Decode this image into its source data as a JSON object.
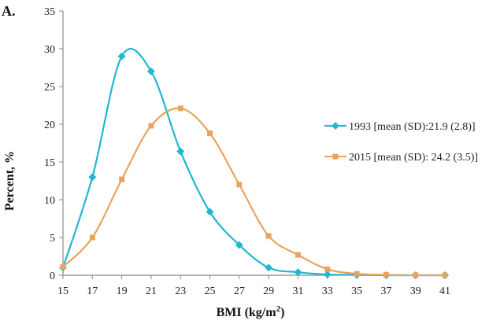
{
  "panel_label": "A.",
  "colors": {
    "series_1993": "#20B7D0",
    "series_2015": "#E9A35E",
    "axis": "#8a8a8a"
  },
  "chart_data": {
    "type": "line",
    "xlabel_main": "BMI (kg/m",
    "xlabel_sup": "2",
    "xlabel_tail": ")",
    "ylabel": "Percent, %",
    "xlim": [
      15,
      41
    ],
    "ylim": [
      0,
      35
    ],
    "x_ticks": [
      15,
      17,
      19,
      21,
      23,
      25,
      27,
      29,
      31,
      33,
      35,
      37,
      39,
      41
    ],
    "y_ticks": [
      0,
      5,
      10,
      15,
      20,
      25,
      30,
      35
    ],
    "grid": false,
    "legend_position": "right",
    "series": [
      {
        "name": "1993 [mean (SD):21.9 (2.8)]",
        "marker": "diamond",
        "x": [
          15,
          17,
          19,
          21,
          23,
          25,
          27,
          29,
          31,
          33,
          35,
          37,
          39,
          41
        ],
        "y": [
          1.0,
          13.0,
          29.0,
          27.0,
          16.4,
          8.4,
          4.0,
          1.0,
          0.4,
          0.1,
          0.05,
          0.0,
          0.0,
          0.0
        ]
      },
      {
        "name": "2015 [mean (SD): 24.2 (3.5)]",
        "marker": "square",
        "x": [
          15,
          17,
          19,
          21,
          23,
          25,
          27,
          29,
          31,
          33,
          35,
          37,
          39,
          41
        ],
        "y": [
          1.1,
          5.0,
          12.7,
          19.8,
          22.1,
          18.8,
          12.0,
          5.2,
          2.7,
          0.8,
          0.2,
          0.05,
          0.0,
          0.0
        ]
      }
    ]
  }
}
